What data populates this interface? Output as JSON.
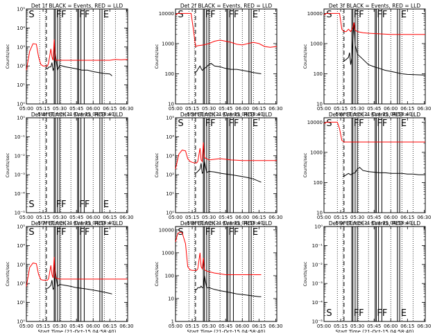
{
  "time_ticks": [
    "05:00",
    "05:15",
    "05:30",
    "05:45",
    "06:00",
    "06:15",
    "06:30"
  ],
  "xlabel": "Start Time (21-Oct-15 04:58:40)",
  "ylabel": "Counts/sec",
  "colors": {
    "events": "#000000",
    "lld": "#ff0000"
  },
  "chart_data": [
    {
      "title": "Det 1f BLACK = Events, RED = LLD",
      "type": "line",
      "yscale": "log",
      "ytick_labels": [
        "10⁰",
        "10¹",
        "10²",
        "10³",
        "10⁴",
        "10⁵"
      ],
      "ylim": [
        1,
        100000
      ],
      "markers": [
        "S",
        "FF",
        "FF",
        "E"
      ],
      "series": [
        {
          "name": "Events",
          "x": [
            "05:17",
            "05:19",
            "05:20",
            "05:22",
            "05:23",
            "05:24",
            "05:25",
            "05:26",
            "05:28",
            "05:30",
            "05:35",
            "05:40",
            "05:45",
            "05:50",
            "05:55",
            "06:00",
            "06:05",
            "06:10",
            "06:15",
            "06:17"
          ],
          "y": [
            70,
            70,
            85,
            90,
            150,
            60,
            80,
            450,
            60,
            110,
            90,
            80,
            70,
            60,
            60,
            50,
            45,
            40,
            38,
            30
          ]
        },
        {
          "name": "LLD",
          "x": [
            "05:00",
            "05:03",
            "05:06",
            "05:09",
            "05:11",
            "05:13",
            "05:15",
            "05:17",
            "05:19",
            "05:20",
            "05:22",
            "05:23",
            "05:24",
            "05:25",
            "05:26",
            "05:28",
            "05:30",
            "05:35",
            "05:40",
            "05:45",
            "05:50",
            "05:55",
            "06:00",
            "06:05",
            "06:10",
            "06:15",
            "06:20",
            "06:25",
            "06:31"
          ],
          "y": [
            60,
            600,
            1500,
            1400,
            300,
            120,
            100,
            100,
            100,
            150,
            800,
            300,
            200,
            2500,
            200,
            200,
            200,
            200,
            200,
            200,
            200,
            200,
            200,
            200,
            200,
            200,
            220,
            210,
            220
          ]
        }
      ]
    },
    {
      "title": "Det 2f BLACK = Events, RED = LLD",
      "type": "line",
      "yscale": "log",
      "ytick_labels": [
        "10",
        "100",
        "1000",
        "10000"
      ],
      "ylim": [
        10,
        14000
      ],
      "markers": [
        "S",
        "FF",
        "FF",
        "E"
      ],
      "series": [
        {
          "name": "Events",
          "x": [
            "05:17",
            "05:19",
            "05:20",
            "05:22",
            "05:23",
            "05:24",
            "05:25",
            "05:26",
            "05:28",
            "05:30",
            "05:32",
            "05:35",
            "05:40",
            "05:45",
            "05:50",
            "05:55",
            "06:00",
            "06:05",
            "06:10",
            "06:17"
          ],
          "y": [
            110,
            120,
            140,
            180,
            150,
            130,
            140,
            150,
            170,
            200,
            220,
            180,
            170,
            150,
            140,
            140,
            130,
            120,
            110,
            100
          ]
        },
        {
          "name": "LLD",
          "x": [
            "05:00",
            "05:02",
            "05:04",
            "05:06",
            "05:09",
            "05:12",
            "05:14",
            "05:16",
            "05:18",
            "05:20",
            "05:25",
            "05:30",
            "05:35",
            "05:40",
            "05:45",
            "05:50",
            "05:55",
            "06:00",
            "06:05",
            "06:10",
            "06:15",
            "06:20",
            "06:25",
            "06:31"
          ],
          "y": [
            9000,
            10000,
            10000,
            10000,
            10000,
            10000,
            10000,
            3000,
            800,
            850,
            900,
            1000,
            1200,
            1300,
            1200,
            1100,
            950,
            900,
            1000,
            1100,
            1000,
            800,
            750,
            800
          ]
        }
      ]
    },
    {
      "title": "Det 3f BLACK = Events, RED = LLD",
      "type": "line",
      "yscale": "log",
      "ytick_labels": [
        "10",
        "100",
        "1000",
        "10000"
      ],
      "ylim": [
        10,
        14000
      ],
      "markers": [
        "S",
        "FF",
        "FF",
        "E"
      ],
      "series": [
        {
          "name": "Events",
          "x": [
            "05:17",
            "05:19",
            "05:20",
            "05:22",
            "05:23",
            "05:24",
            "05:25",
            "05:26",
            "05:27",
            "05:28",
            "05:30",
            "05:35",
            "05:40",
            "05:45",
            "05:50",
            "05:55",
            "06:00",
            "06:05",
            "06:10",
            "06:15",
            "06:31"
          ],
          "y": [
            250,
            280,
            300,
            350,
            500,
            200,
            350,
            1500,
            5000,
            900,
            450,
            300,
            200,
            170,
            150,
            130,
            120,
            110,
            100,
            95,
            90
          ]
        },
        {
          "name": "LLD",
          "x": [
            "05:00",
            "05:02",
            "05:04",
            "05:06",
            "05:09",
            "05:12",
            "05:14",
            "05:16",
            "05:18",
            "05:20",
            "05:22",
            "05:24",
            "05:26",
            "05:27",
            "05:28",
            "05:30",
            "05:35",
            "05:40",
            "05:50",
            "06:00",
            "06:10",
            "06:20",
            "06:31"
          ],
          "y": [
            9000,
            10000,
            10000,
            10000,
            10000,
            10000,
            10000,
            3000,
            2500,
            2500,
            3000,
            2500,
            3500,
            5000,
            2800,
            2500,
            2300,
            2200,
            2100,
            2000,
            2000,
            2000,
            2000
          ]
        }
      ]
    },
    {
      "title": "Det 4f BLACK = Events, RED = LLD",
      "type": "line",
      "yscale": "log",
      "ytick_labels": [
        "10⁻⁵",
        "10⁻⁴",
        "10⁻³",
        "10⁻²",
        "10⁻¹",
        "10⁰"
      ],
      "ylim": [
        1e-05,
        1
      ],
      "markers": [
        "S",
        "FF",
        "FF",
        "E"
      ],
      "series": []
    },
    {
      "title": "Det 5f BLACK = Events, RED = LLD",
      "type": "line",
      "yscale": "log",
      "ytick_labels": [
        "10⁰",
        "10¹",
        "10²",
        "10³",
        "10⁴",
        "10⁵"
      ],
      "ylim": [
        1,
        100000
      ],
      "markers": [
        "S",
        "FF",
        "FF",
        "E"
      ],
      "series": [
        {
          "name": "Events",
          "x": [
            "05:17",
            "05:19",
            "05:20",
            "05:22",
            "05:23",
            "05:24",
            "05:25",
            "05:26",
            "05:28",
            "05:30",
            "05:35",
            "05:40",
            "05:45",
            "05:50",
            "05:55",
            "06:00",
            "06:05",
            "06:10",
            "06:15",
            "06:17"
          ],
          "y": [
            120,
            130,
            150,
            200,
            400,
            120,
            140,
            500,
            130,
            150,
            140,
            120,
            110,
            100,
            90,
            80,
            70,
            60,
            45,
            40
          ]
        },
        {
          "name": "LLD",
          "x": [
            "05:00",
            "05:03",
            "05:06",
            "05:09",
            "05:11",
            "05:13",
            "05:15",
            "05:17",
            "05:19",
            "05:20",
            "05:22",
            "05:23",
            "05:24",
            "05:25",
            "05:26",
            "05:28",
            "05:30",
            "05:35",
            "05:40",
            "05:45",
            "05:50",
            "05:55",
            "06:00",
            "06:05",
            "06:10",
            "06:15",
            "06:20",
            "06:25",
            "06:31"
          ],
          "y": [
            200,
            1200,
            2000,
            1800,
            700,
            500,
            450,
            420,
            420,
            500,
            2500,
            600,
            500,
            5000,
            800,
            700,
            600,
            650,
            700,
            650,
            600,
            580,
            560,
            560,
            560,
            560,
            560,
            560,
            560
          ]
        }
      ]
    },
    {
      "title": "Det 6f BLACK = Events, RED = LLD",
      "type": "line",
      "yscale": "log",
      "ytick_labels": [
        "10",
        "100",
        "1000",
        "10000"
      ],
      "ylim": [
        10,
        14000
      ],
      "markers": [
        "S",
        "FF",
        "FF",
        "E"
      ],
      "series": [
        {
          "name": "Events",
          "x": [
            "05:17",
            "05:19",
            "05:20",
            "05:22",
            "05:23",
            "05:24",
            "05:25",
            "05:26",
            "05:28",
            "05:30",
            "05:32",
            "05:35",
            "05:40",
            "05:45",
            "05:50",
            "05:55",
            "06:00",
            "06:05",
            "06:10",
            "06:15",
            "06:20",
            "06:25",
            "06:31"
          ],
          "y": [
            160,
            170,
            180,
            200,
            190,
            180,
            190,
            200,
            210,
            280,
            320,
            250,
            230,
            220,
            210,
            210,
            200,
            200,
            200,
            190,
            190,
            180,
            180
          ]
        },
        {
          "name": "LLD",
          "x": [
            "05:00",
            "05:02",
            "05:04",
            "05:06",
            "05:09",
            "05:12",
            "05:14",
            "05:16",
            "05:18",
            "05:20",
            "05:25",
            "05:30",
            "05:35",
            "05:40",
            "05:50",
            "06:00",
            "06:10",
            "06:20",
            "06:31"
          ],
          "y": [
            9000,
            10000,
            10000,
            10000,
            10000,
            10000,
            6000,
            2500,
            2200,
            2200,
            2200,
            2200,
            2200,
            2200,
            2200,
            2200,
            2200,
            2200,
            2200
          ]
        }
      ]
    },
    {
      "title": "Det 7f BLACK = Events, RED = LLD",
      "type": "line",
      "yscale": "log",
      "ytick_labels": [
        "10⁰",
        "10¹",
        "10²",
        "10³",
        "10⁴",
        "10⁵"
      ],
      "ylim": [
        1,
        100000
      ],
      "markers": [
        "S",
        "FF",
        "FF",
        "E"
      ],
      "series": [
        {
          "name": "Events",
          "x": [
            "05:17",
            "05:19",
            "05:20",
            "05:22",
            "05:23",
            "05:24",
            "05:25",
            "05:26",
            "05:28",
            "05:30",
            "05:35",
            "05:40",
            "05:45",
            "05:50",
            "05:55",
            "06:00",
            "06:05",
            "06:10",
            "06:15",
            "06:17"
          ],
          "y": [
            55,
            55,
            60,
            80,
            150,
            50,
            60,
            450,
            70,
            90,
            80,
            70,
            60,
            55,
            50,
            45,
            40,
            35,
            30,
            28
          ]
        },
        {
          "name": "LLD",
          "x": [
            "05:00",
            "05:03",
            "05:06",
            "05:09",
            "05:11",
            "05:13",
            "05:15",
            "05:17",
            "05:19",
            "05:20",
            "05:22",
            "05:23",
            "05:24",
            "05:25",
            "05:26",
            "05:28",
            "05:30",
            "05:35",
            "05:40",
            "05:45",
            "05:50",
            "05:55",
            "06:00",
            "06:05",
            "06:10",
            "06:15",
            "06:20",
            "06:25",
            "06:31"
          ],
          "y": [
            70,
            700,
            1200,
            1100,
            300,
            160,
            150,
            150,
            150,
            180,
            900,
            300,
            200,
            2500,
            200,
            180,
            170,
            170,
            170,
            170,
            170,
            170,
            170,
            170,
            170,
            170,
            170,
            170,
            170
          ]
        }
      ]
    },
    {
      "title": "Det 8f BLACK = Events, RED = LLD",
      "type": "line",
      "yscale": "log",
      "ytick_labels": [
        "1",
        "10",
        "100",
        "1000",
        "10000"
      ],
      "ylim": [
        1,
        14000
      ],
      "markers": [
        "S",
        "FF",
        "FF",
        "E"
      ],
      "series": [
        {
          "name": "Events",
          "x": [
            "05:17",
            "05:19",
            "05:20",
            "05:22",
            "05:23",
            "05:24",
            "05:25",
            "05:26",
            "05:28",
            "05:30",
            "05:35",
            "05:40",
            "05:45",
            "05:50",
            "05:55",
            "06:00",
            "06:05",
            "06:10",
            "06:15",
            "06:17"
          ],
          "y": [
            25,
            25,
            30,
            30,
            35,
            30,
            30,
            100,
            30,
            30,
            25,
            22,
            20,
            18,
            16,
            15,
            14,
            13,
            12,
            12
          ]
        },
        {
          "name": "LLD",
          "x": [
            "05:00",
            "05:02",
            "05:04",
            "05:06",
            "05:09",
            "05:11",
            "05:13",
            "05:15",
            "05:17",
            "05:19",
            "05:20",
            "05:22",
            "05:23",
            "05:24",
            "05:25",
            "05:26",
            "05:28",
            "05:30",
            "05:35",
            "05:40",
            "05:45",
            "05:50",
            "05:55",
            "06:00",
            "06:05",
            "06:10",
            "06:15",
            "06:17"
          ],
          "y": [
            3000,
            7000,
            8000,
            7500,
            2500,
            250,
            180,
            170,
            170,
            170,
            200,
            1000,
            250,
            200,
            600,
            180,
            160,
            150,
            130,
            120,
            110,
            110,
            110,
            110,
            110,
            110,
            110,
            110
          ]
        }
      ]
    },
    {
      "title": "Det 9f BLACK = Events, RED = LLD",
      "type": "line",
      "yscale": "log",
      "ytick_labels": [
        "10⁻⁵",
        "10⁻⁴",
        "10⁻³",
        "10⁻²",
        "10⁻¹",
        "10⁰"
      ],
      "ylim": [
        1e-05,
        1
      ],
      "markers": [
        "S",
        "FF",
        "FF",
        "E"
      ],
      "series": []
    }
  ]
}
